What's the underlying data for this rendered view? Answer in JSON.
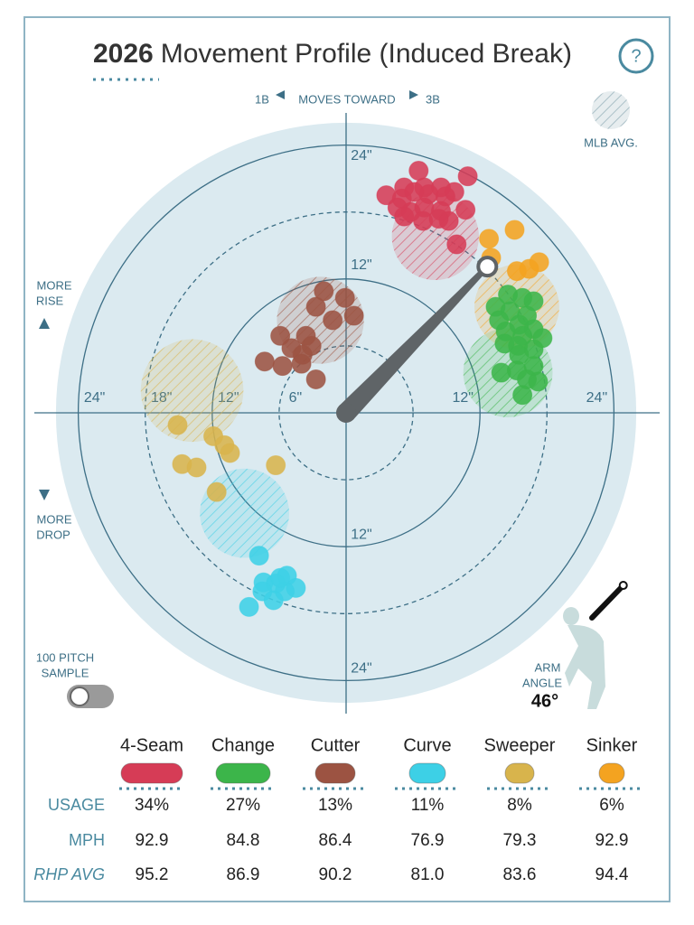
{
  "header": {
    "year": "2026",
    "title": "Movement Profile (Induced Break)",
    "help": "?"
  },
  "chart_data": {
    "type": "scatter",
    "x_label_left": "1B",
    "x_label": "MOVES TOWARD",
    "x_label_right": "3B",
    "rise_label": [
      "MORE",
      "RISE"
    ],
    "drop_label": [
      "MORE",
      "DROP"
    ],
    "avg_legend": "MLB AVG.",
    "rlim": [
      0,
      26
    ],
    "rings": [
      {
        "value": 6,
        "dashed": true
      },
      {
        "value": 12,
        "dashed": false
      },
      {
        "value": 18,
        "dashed": true
      },
      {
        "value": 24,
        "dashed": false
      }
    ],
    "ring_labels": {
      "top": [
        {
          "value": 24,
          "label": "24\""
        },
        {
          "value": 12,
          "label": "12\""
        }
      ],
      "left": [
        {
          "value": 24,
          "label": "24\""
        },
        {
          "value": 18,
          "label": "18\""
        },
        {
          "value": 12,
          "label": "12\""
        },
        {
          "value": 6,
          "label": "6\""
        }
      ],
      "right": [
        {
          "value": 12,
          "label": "12\""
        },
        {
          "value": 24,
          "label": "24\""
        }
      ],
      "bottom": [
        {
          "value": 12,
          "label": "12\""
        },
        {
          "value": 24,
          "label": "24\""
        }
      ]
    },
    "arm_angle": {
      "value": 46,
      "label": "46°"
    },
    "arm_angle_label": [
      "ARM",
      "ANGLE"
    ],
    "series": [
      {
        "name": "4-Seam",
        "color": "#d63c56",
        "x": [
          6.5,
          10.9,
          5.2,
          7.0,
          8.5,
          9.7,
          3.6,
          5.0,
          6.1,
          7.4,
          8.9,
          4.6,
          5.8,
          7.0,
          8.5,
          10.7,
          5.2,
          6.9,
          8.3,
          9.2,
          9.9
        ],
        "values": [
          21.7,
          21.2,
          20.2,
          20.2,
          20.2,
          19.8,
          19.5,
          19.2,
          19.8,
          19.6,
          19.4,
          18.4,
          18.0,
          18.4,
          18.1,
          18.2,
          17.6,
          17.2,
          17.4,
          17.2,
          15.1
        ],
        "avg": {
          "x": 8.0,
          "y": 15.8,
          "r": 3.9
        }
      },
      {
        "name": "Change",
        "color": "#3cb54a",
        "x": [
          14.5,
          15.8,
          16.8,
          13.4,
          14.7,
          16.2,
          13.7,
          15.5,
          16.8,
          14.3,
          15.8,
          17.6,
          14.2,
          15.4,
          16.8,
          15.5,
          13.9,
          15.3,
          16.8,
          16.2,
          17.2,
          15.8
        ],
        "values": [
          10.6,
          10.3,
          10.0,
          9.5,
          9.1,
          8.7,
          8.3,
          7.9,
          7.5,
          7.3,
          6.9,
          6.7,
          6.2,
          6.0,
          5.7,
          5.2,
          3.6,
          3.8,
          4.2,
          3.0,
          2.8,
          1.6
        ],
        "avg": {
          "x": 14.5,
          "y": 3.6,
          "r": 4.0
        }
      },
      {
        "name": "Cutter",
        "color": "#9c5342",
        "x": [
          -2.0,
          -0.1,
          -2.7,
          0.7,
          -1.2,
          -5.9,
          -3.6,
          -4.9,
          -3.1,
          -3.9,
          -7.3,
          -5.7,
          -4.0,
          -2.7
        ],
        "values": [
          10.9,
          10.3,
          9.5,
          8.7,
          8.3,
          6.9,
          6.9,
          5.8,
          6.0,
          5.2,
          4.6,
          4.2,
          4.4,
          3.0
        ],
        "avg": {
          "x": -2.3,
          "y": 8.3,
          "r": 3.9
        }
      },
      {
        "name": "Curve",
        "color": "#3dd0e6",
        "x": [
          -7.8,
          -5.3,
          -7.4,
          -6.3,
          -4.5,
          -7.5,
          -5.5,
          -6.5,
          -8.7,
          -5.9
        ],
        "values": [
          -12.8,
          -14.6,
          -15.2,
          -15.3,
          -15.7,
          -16.0,
          -16.0,
          -16.8,
          -17.4,
          -14.8
        ],
        "avg": {
          "x": -9.1,
          "y": -9.0,
          "r": 4.0
        }
      },
      {
        "name": "Sweeper",
        "color": "#d8b44c",
        "x": [
          -15.1,
          -11.9,
          -10.9,
          -10.4,
          -14.7,
          -13.4,
          -11.6,
          -6.3
        ],
        "values": [
          -1.1,
          -2.1,
          -2.9,
          -3.6,
          -4.6,
          -4.9,
          -7.1,
          -4.7
        ],
        "avg": {
          "x": -13.8,
          "y": 2.0,
          "r": 4.6
        }
      },
      {
        "name": "Sinker",
        "color": "#f4a320",
        "x": [
          12.8,
          15.1,
          15.3,
          16.4,
          17.3,
          13.0
        ],
        "values": [
          15.6,
          16.4,
          12.7,
          12.9,
          13.5,
          13.9
        ],
        "avg": {
          "x": 15.3,
          "y": 9.5,
          "r": 3.8
        }
      }
    ]
  },
  "sample_toggle": [
    "100 PITCH",
    "SAMPLE"
  ],
  "table": {
    "row_labels": [
      "USAGE",
      "MPH",
      "RHP AVG"
    ],
    "rows": [
      [
        "34%",
        "27%",
        "13%",
        "11%",
        "8%",
        "6%"
      ],
      [
        "92.9",
        "84.8",
        "86.4",
        "76.9",
        "79.3",
        "92.9"
      ],
      [
        "95.2",
        "86.9",
        "90.2",
        "81.0",
        "83.6",
        "94.4"
      ]
    ]
  }
}
